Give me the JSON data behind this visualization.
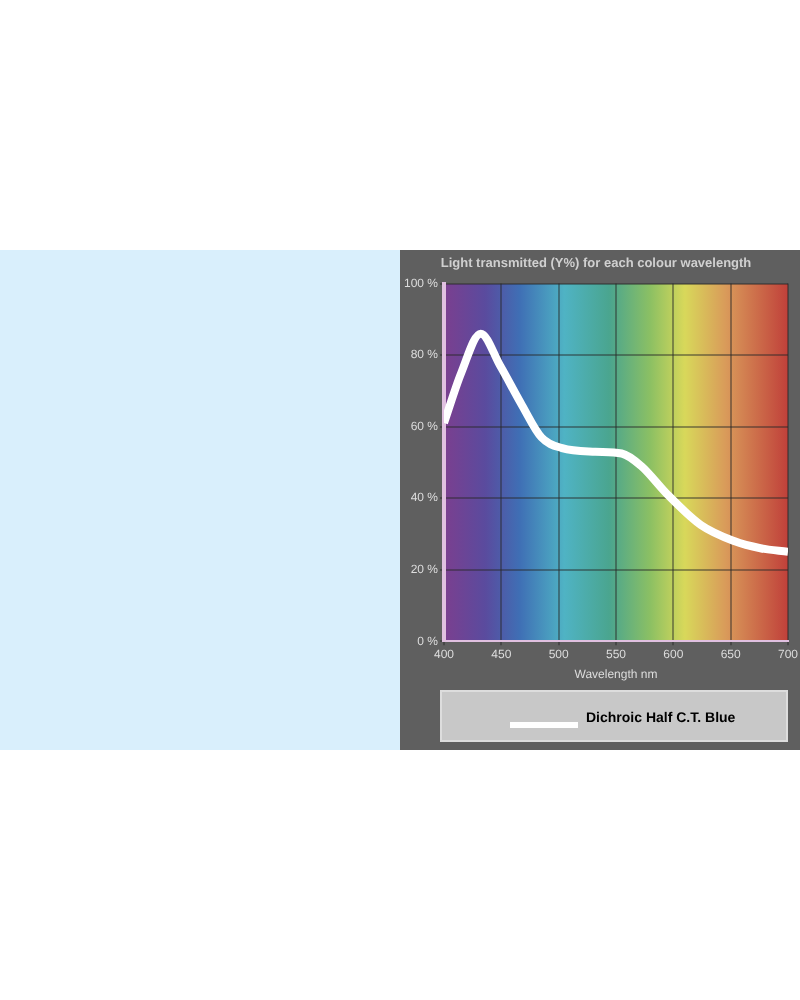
{
  "chart_data": {
    "type": "line",
    "title": "Light transmitted (Y%) for each colour wavelength",
    "xlabel": "Wavelength nm",
    "x": [
      400,
      415,
      432,
      449,
      468,
      485,
      503,
      532,
      555,
      572,
      595,
      624,
      653,
      676,
      700
    ],
    "series": [
      {
        "name": "Dichroic Half C.T. Blue",
        "color": "#ffffff",
        "values": [
          61,
          75,
          86,
          77,
          66,
          57,
          54,
          53,
          52.5,
          49,
          41,
          32.5,
          28,
          26,
          25
        ]
      }
    ],
    "xlim": [
      400,
      700
    ],
    "xticks": [
      400,
      450,
      500,
      550,
      600,
      650,
      700
    ],
    "ylim": [
      0,
      100
    ],
    "yticks": [
      {
        "value": 0,
        "label": "0 %"
      },
      {
        "value": 20,
        "label": "20 %"
      },
      {
        "value": 40,
        "label": "40 %"
      },
      {
        "value": 60,
        "label": "60 %"
      },
      {
        "value": 80,
        "label": "80 %"
      },
      {
        "value": 100,
        "label": "100 %"
      }
    ],
    "grid": true,
    "legend": "bottom",
    "marker": "none",
    "line_style": "solid"
  }
}
